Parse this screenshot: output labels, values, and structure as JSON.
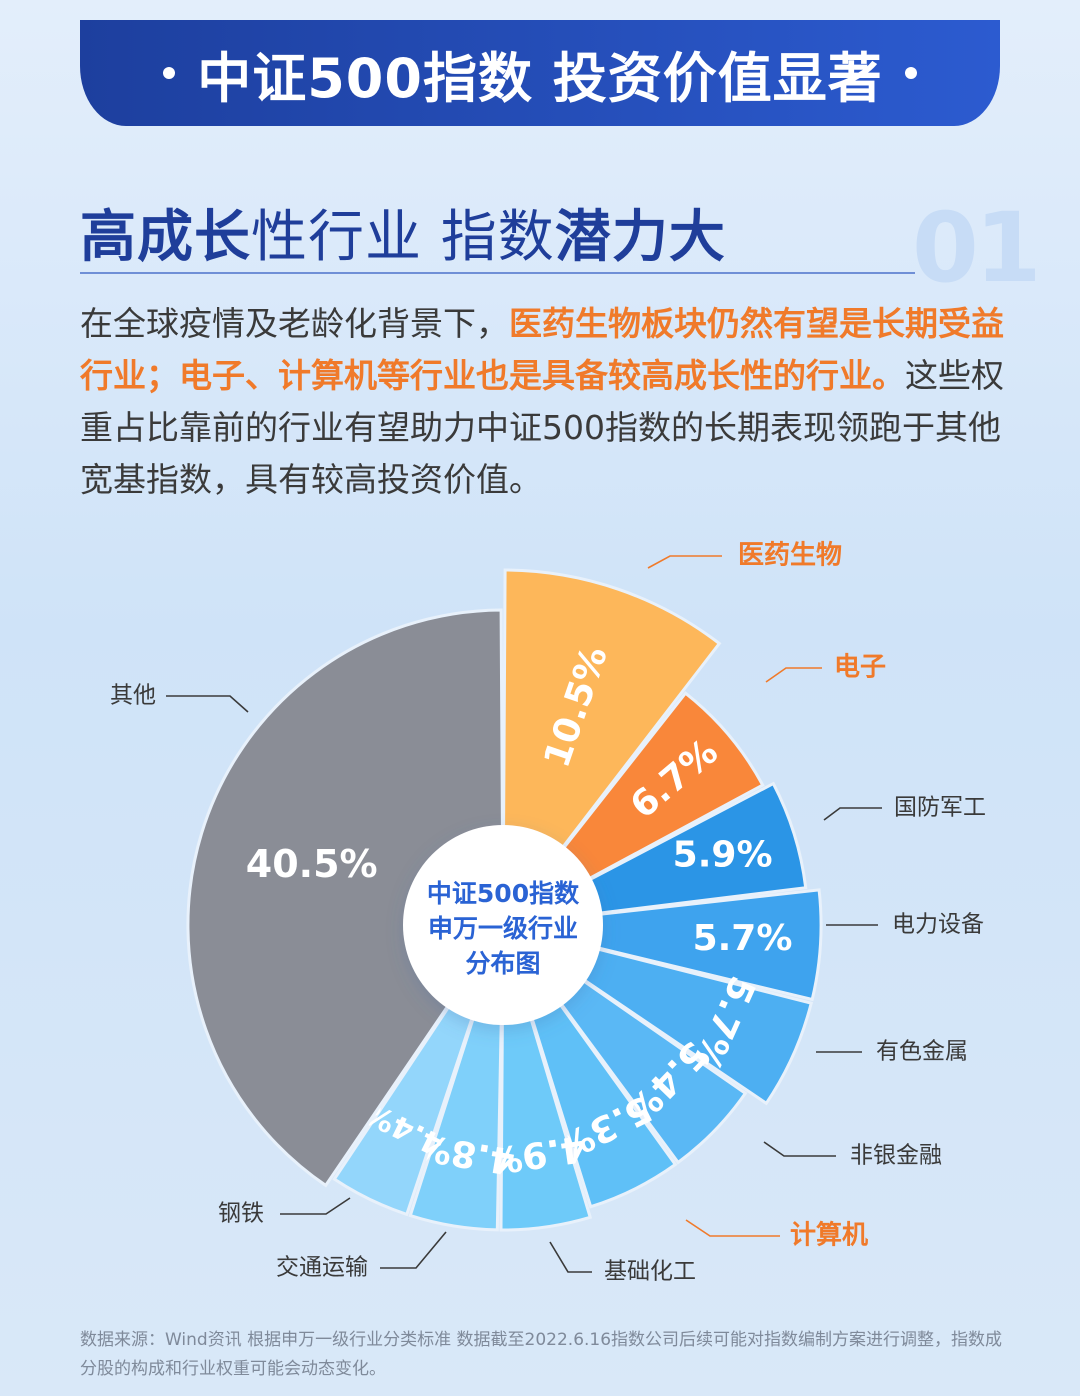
{
  "header": {
    "banner_title": "中证500指数 投资价值显著",
    "subtitle_part1": "高成长",
    "subtitle_part2": "性行业 指数",
    "subtitle_part3": "潜力大",
    "section_number": "01"
  },
  "paragraph": {
    "text_1": "在全球疫情及老龄化背景下，",
    "highlight": "医药生物板块仍然有望是长期受益行业；电子、计算机等行业也是具备较高成长性的行业。",
    "text_2": "这些权重占比靠前的行业有望助力中证500指数的长期表现领跑于其他宽基指数，具有较高投资价值。"
  },
  "chart_data": {
    "type": "pie",
    "center_label": [
      "中证500指数",
      "申万一级行业",
      "分布图"
    ],
    "slices": [
      {
        "label": "医药生物",
        "value": 10.5,
        "value_label": "10.5%",
        "color": "#fdb75a",
        "highlight": true
      },
      {
        "label": "电子",
        "value": 6.7,
        "value_label": "6.7%",
        "color": "#f9873a",
        "highlight": true
      },
      {
        "label": "国防军工",
        "value": 5.9,
        "value_label": "5.9%",
        "color": "#2b95e6",
        "highlight": false
      },
      {
        "label": "电力设备",
        "value": 5.7,
        "value_label": "5.7%",
        "color": "#3ea3ee",
        "highlight": false
      },
      {
        "label": "有色金属",
        "value": 5.7,
        "value_label": "5.7%",
        "color": "#4daff2",
        "highlight": false
      },
      {
        "label": "非银金融",
        "value": 5.4,
        "value_label": "5.4%",
        "color": "#5ab8f5",
        "highlight": false
      },
      {
        "label": "计算机",
        "value": 5.3,
        "value_label": "5.3%",
        "color": "#5fc0f7",
        "highlight": true
      },
      {
        "label": "基础化工",
        "value": 4.9,
        "value_label": "4.9%",
        "color": "#6ecaf9",
        "highlight": false
      },
      {
        "label": "交通运输",
        "value": 4.8,
        "value_label": "4.8%",
        "color": "#7fd0fa",
        "highlight": false
      },
      {
        "label": "钢铁",
        "value": 4.4,
        "value_label": "4.4%",
        "color": "#93d6fb",
        "highlight": false
      },
      {
        "label": "其他",
        "value": 40.5,
        "value_label": "40.5%",
        "color": "#8a8d96",
        "highlight": false
      }
    ],
    "label_color_highlight": "#f07a2a",
    "label_color_normal": "#3a3a3a"
  },
  "footer": {
    "source": "数据来源：Wind资讯 根据申万一级行业分类标准 数据截至2022.6.16指数公司后续可能对指数编制方案进行调整，指数成分股的构成和行业权重可能会动态变化。"
  }
}
